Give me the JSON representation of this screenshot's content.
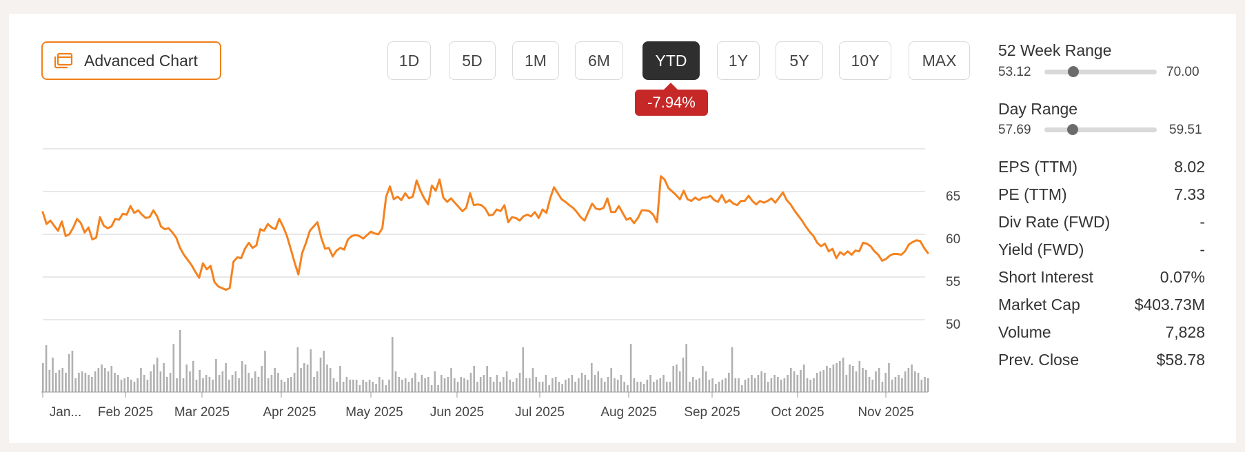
{
  "toolbar": {
    "advanced_chart_label": "Advanced Chart",
    "ranges": [
      "1D",
      "5D",
      "1M",
      "6M",
      "YTD",
      "1Y",
      "5Y",
      "10Y",
      "MAX"
    ],
    "active_range": "YTD",
    "change_badge": "-7.94%",
    "accent_color": "#f07f19",
    "badge_color": "#c62828"
  },
  "chart_data": {
    "type": "line",
    "title": "",
    "xlabel": "",
    "ylabel": "",
    "ylim": [
      50,
      70
    ],
    "y_ticks": [
      "65",
      "60",
      "55",
      "50"
    ],
    "x_ticks": [
      "Jan...",
      "Feb 2025",
      "Mar 2025",
      "Apr 2025",
      "May 2025",
      "Jun 2025",
      "Jul 2025",
      "Aug 2025",
      "Sep 2025",
      "Oct 2025",
      "Nov 2025"
    ],
    "grid": true,
    "line_color": "#f5821f",
    "volume_color": "#b0b0b0",
    "series": [
      {
        "values": [
          62.6,
          61.2,
          61.6,
          61.0,
          60.4,
          61.5,
          59.8,
          60.0,
          60.8,
          61.8,
          61.3,
          60.2,
          60.8,
          59.4,
          59.6,
          62.0,
          61.0,
          60.7,
          60.9,
          61.8,
          61.7,
          62.4,
          62.3,
          63.3,
          62.5,
          62.8,
          62.3,
          61.9,
          62.0,
          62.8,
          62.1,
          60.9,
          60.6,
          60.7,
          60.2,
          59.6,
          58.4,
          57.6,
          57.0,
          56.4,
          55.6,
          54.9,
          56.6,
          55.9,
          56.3,
          54.4,
          53.9,
          53.7,
          53.5,
          53.7,
          56.8,
          57.3,
          57.2,
          58.3,
          59.0,
          58.4,
          58.7,
          60.6,
          60.4,
          61.2,
          60.8,
          60.6,
          61.8,
          60.9,
          59.8,
          58.3,
          56.7,
          55.3,
          57.8,
          59.0,
          60.4,
          60.9,
          61.4,
          59.6,
          58.3,
          58.4,
          57.4,
          58.1,
          58.4,
          58.2,
          59.4,
          59.8,
          59.9,
          59.8,
          59.5,
          59.9,
          60.3,
          60.1,
          60.0,
          60.7,
          64.4,
          65.6,
          64.1,
          64.4,
          64.0,
          64.8,
          64.2,
          64.4,
          66.3,
          65.1,
          64.2,
          63.5,
          65.7,
          65.1,
          66.4,
          64.3,
          63.8,
          64.2,
          63.7,
          63.2,
          62.7,
          63.1,
          64.8,
          63.4,
          63.5,
          63.4,
          63.0,
          62.2,
          62.3,
          62.9,
          62.7,
          63.4,
          61.4,
          62.0,
          61.9,
          61.6,
          62.1,
          62.3,
          62.1,
          62.6,
          61.9,
          62.9,
          62.5,
          64.2,
          65.5,
          64.8,
          64.1,
          63.8,
          63.4,
          63.1,
          62.6,
          62.0,
          61.6,
          62.6,
          63.6,
          63.0,
          62.9,
          63.1,
          64.2,
          62.6,
          62.6,
          63.3,
          62.5,
          61.7,
          61.9,
          61.3,
          61.9,
          62.8,
          62.8,
          62.7,
          62.3,
          61.4,
          66.8,
          66.4,
          65.4,
          65.0,
          64.6,
          64.1,
          65.1,
          64.1,
          63.9,
          64.3,
          64.0,
          64.3,
          64.3,
          64.5,
          64.0,
          63.8,
          64.6,
          63.7,
          64.0,
          63.6,
          63.4,
          63.9,
          63.9,
          64.5,
          63.9,
          63.5,
          63.9,
          63.7,
          63.9,
          64.2,
          63.7,
          64.3,
          64.9,
          64.0,
          63.5,
          62.8,
          62.2,
          61.6,
          60.9,
          60.3,
          59.8,
          59.0,
          58.6,
          58.9,
          58.0,
          58.3,
          57.2,
          57.9,
          57.6,
          58.0,
          57.6,
          58.1,
          58.0,
          59.0,
          58.9,
          58.6,
          58.0,
          57.6,
          56.9,
          57.1,
          57.5,
          57.7,
          57.7,
          57.6,
          58.0,
          58.8,
          59.1,
          59.3,
          59.2,
          58.4,
          57.8
        ]
      }
    ],
    "volume": [
      42,
      68,
      32,
      50,
      28,
      32,
      35,
      28,
      55,
      60,
      20,
      28,
      30,
      28,
      25,
      22,
      30,
      35,
      40,
      35,
      30,
      38,
      28,
      25,
      18,
      20,
      22,
      18,
      15,
      20,
      35,
      25,
      18,
      30,
      40,
      50,
      30,
      42,
      22,
      28,
      70,
      20,
      90,
      20,
      40,
      30,
      45,
      18,
      32,
      20,
      25,
      22,
      18,
      48,
      25,
      30,
      42,
      18,
      25,
      30,
      20,
      45,
      40,
      28,
      20,
      30,
      22,
      38,
      60,
      20,
      25,
      35,
      28,
      18,
      15,
      20,
      22,
      28,
      65,
      35,
      42,
      40,
      62,
      22,
      30,
      50,
      60,
      40,
      35,
      20,
      15,
      38,
      15,
      22,
      18,
      18,
      18,
      10,
      18,
      15,
      18,
      15,
      12,
      22,
      18,
      10,
      18,
      80,
      30,
      22,
      18,
      20,
      15,
      20,
      28,
      15,
      25,
      20,
      22,
      10,
      30,
      10,
      25,
      20,
      22,
      35,
      20,
      15,
      22,
      20,
      18,
      28,
      38,
      15,
      22,
      25,
      38,
      22,
      15,
      25,
      15,
      22,
      30,
      18,
      15,
      20,
      28,
      65,
      20,
      20,
      35,
      22,
      15,
      15,
      25,
      10,
      20,
      22,
      15,
      12,
      18,
      20,
      25,
      15,
      20,
      28,
      25,
      18,
      42,
      25,
      30,
      20,
      15,
      22,
      35,
      20,
      18,
      25,
      15,
      10,
      70,
      20,
      15,
      15,
      12,
      18,
      25,
      15,
      18,
      20,
      25,
      15,
      15,
      38,
      40,
      30,
      50,
      70,
      15,
      22,
      18,
      20,
      38,
      30,
      18,
      20,
      12,
      15,
      18,
      20,
      28,
      65,
      20,
      20,
      10,
      18,
      20,
      25,
      20,
      25,
      30,
      28,
      15,
      20,
      25,
      22,
      18,
      20,
      25,
      35,
      30,
      25,
      32,
      40,
      20,
      18,
      20,
      28,
      30,
      32,
      38,
      35,
      40,
      42,
      45,
      50,
      25,
      40,
      38,
      30,
      45,
      35,
      32,
      22,
      18,
      30,
      35,
      15,
      28,
      42,
      18,
      22,
      25,
      20,
      30,
      35,
      40,
      30,
      28,
      18,
      22,
      20
    ]
  },
  "side": {
    "week52": {
      "title": "52 Week Range",
      "low": "53.12",
      "high": "70.00",
      "value": 0.26
    },
    "day": {
      "title": "Day Range",
      "low": "57.69",
      "high": "59.51",
      "value": 0.25
    },
    "stats": [
      {
        "label": "EPS (TTM)",
        "value": "8.02"
      },
      {
        "label": "PE (TTM)",
        "value": "7.33"
      },
      {
        "label": "Div Rate (FWD)",
        "value": "-"
      },
      {
        "label": "Yield (FWD)",
        "value": "-"
      },
      {
        "label": "Short Interest",
        "value": "0.07%"
      },
      {
        "label": "Market Cap",
        "value": "$403.73M"
      },
      {
        "label": "Volume",
        "value": "7,828"
      },
      {
        "label": "Prev. Close",
        "value": "$58.78"
      }
    ]
  }
}
